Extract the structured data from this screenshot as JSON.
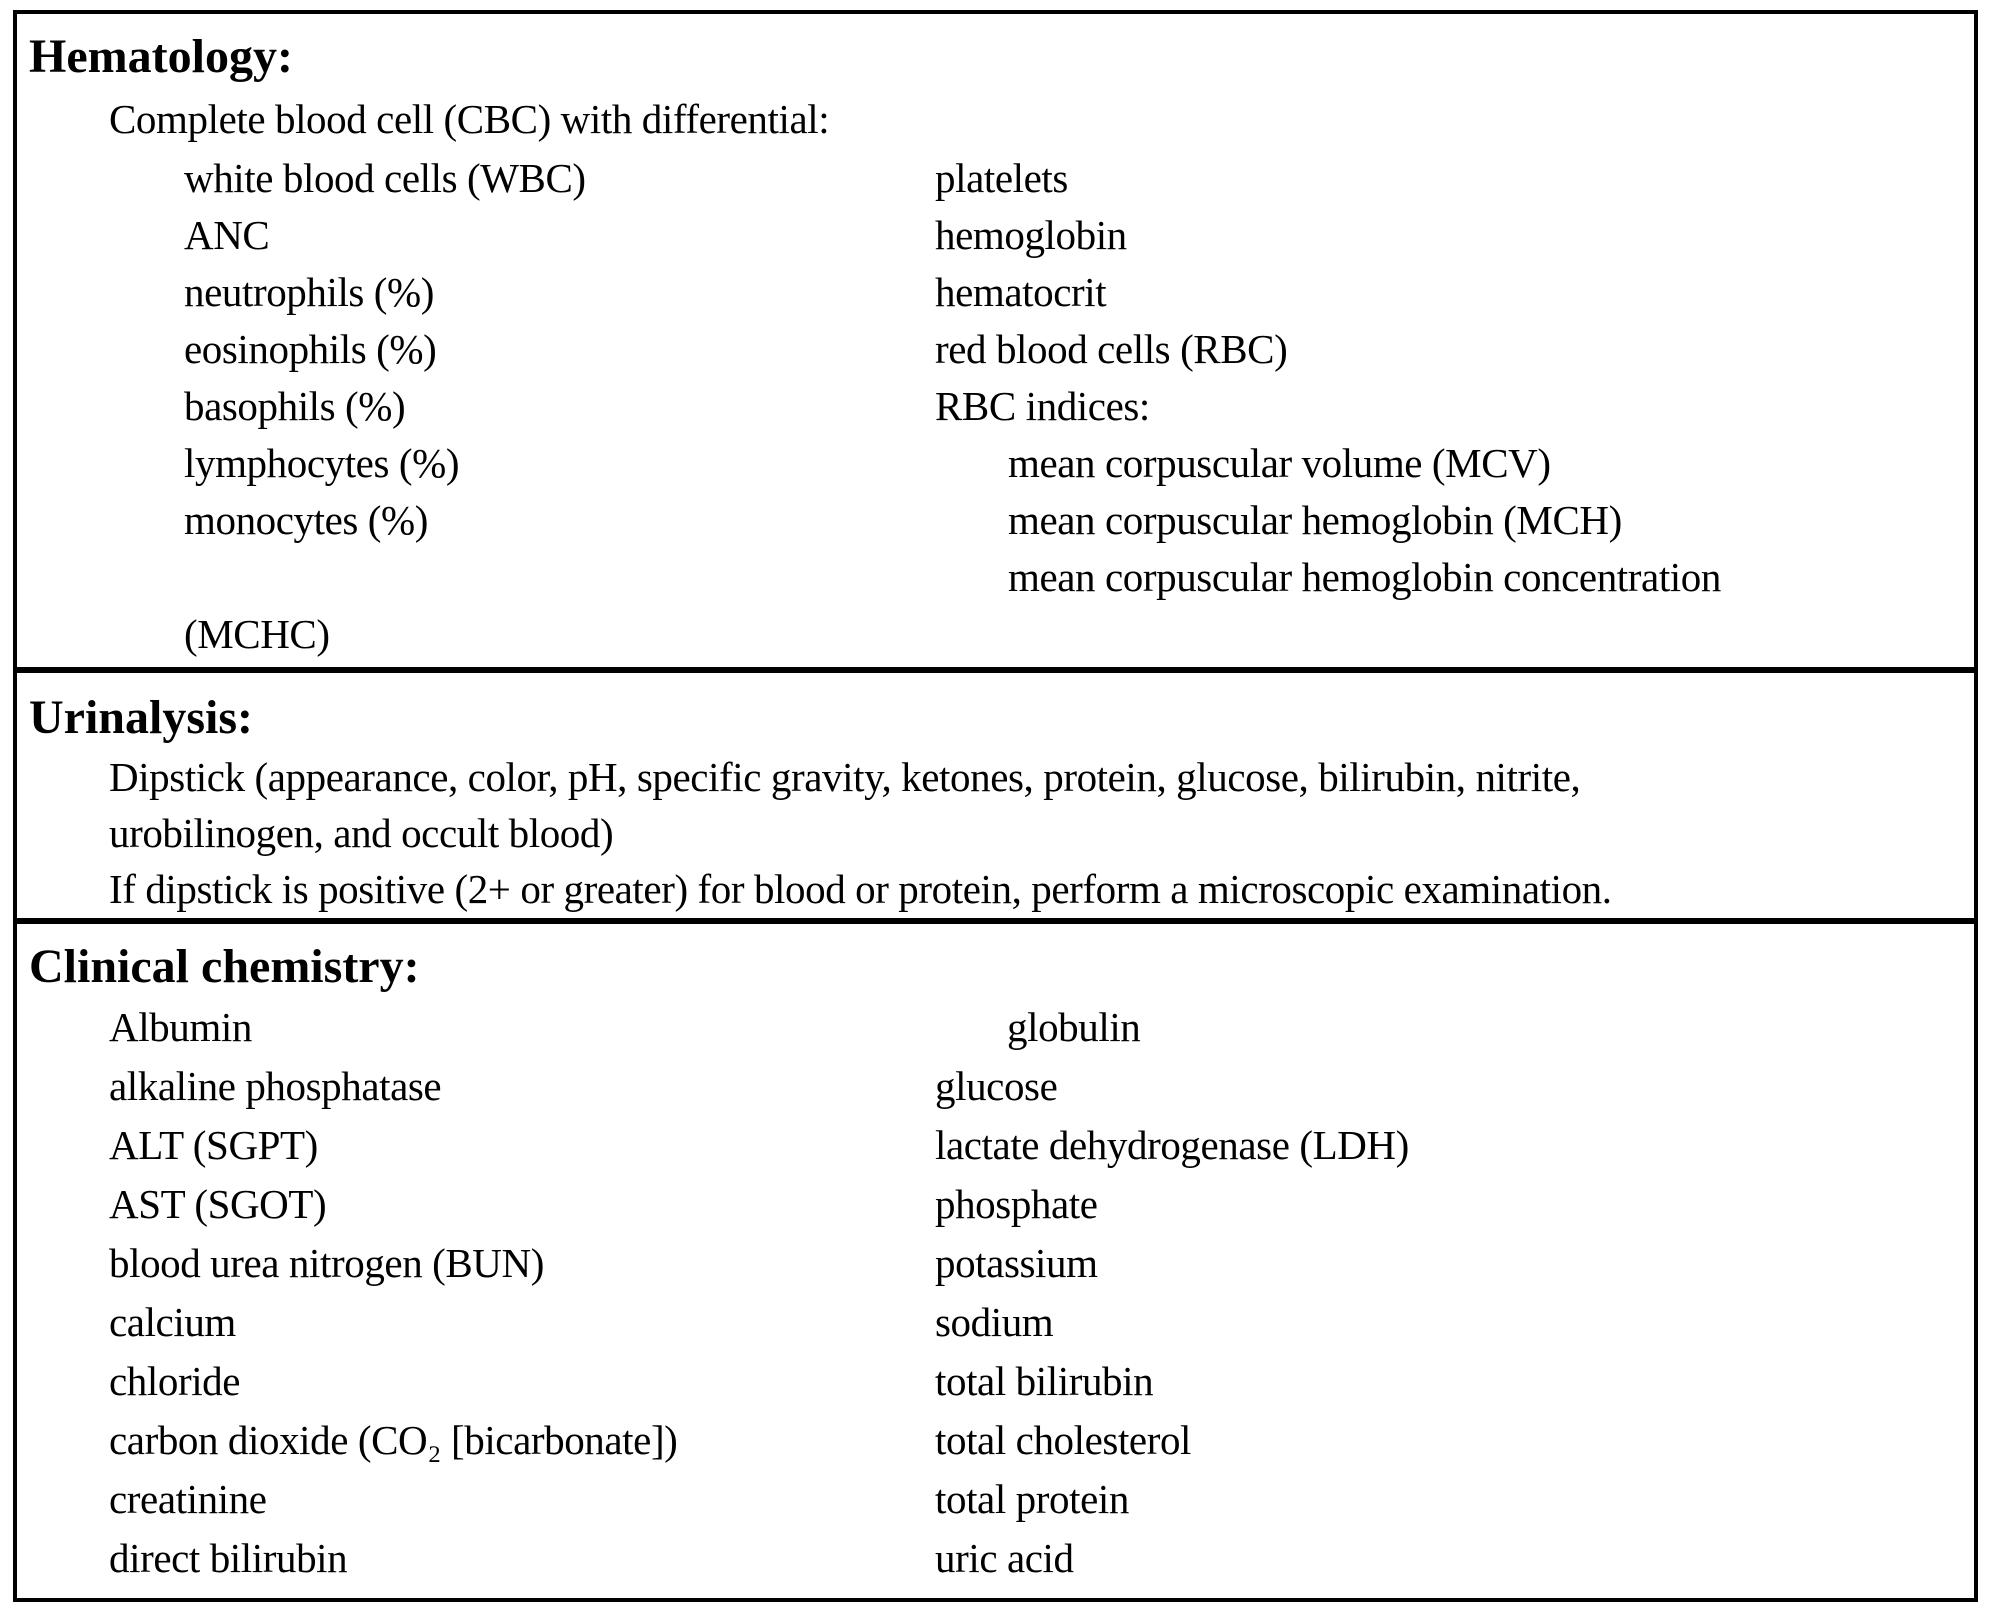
{
  "colors": {
    "ink": "#000000",
    "paper": "#ffffff"
  },
  "sections": {
    "hematology": {
      "title": "Hematology:",
      "subtitle": "Complete blood cell (CBC) with differential:",
      "rows": [
        {
          "left": "white blood cells (WBC)",
          "right": "platelets",
          "right_indented": false
        },
        {
          "left": "ANC",
          "right": "hemoglobin",
          "right_indented": false
        },
        {
          "left": "neutrophils (%)",
          "right": "hematocrit",
          "right_indented": false
        },
        {
          "left": "eosinophils (%)",
          "right": "red blood cells (RBC)",
          "right_indented": false
        },
        {
          "left": "basophils (%)",
          "right": "RBC indices:",
          "right_indented": false
        },
        {
          "left": "lymphocytes (%)",
          "right": "mean corpuscular volume (MCV)",
          "right_indented": true
        },
        {
          "left": "monocytes (%)",
          "right": "mean corpuscular hemoglobin (MCH)",
          "right_indented": true
        },
        {
          "left": "",
          "right": "mean corpuscular hemoglobin concentration",
          "right_indented": true
        },
        {
          "left": "(MCHC)",
          "right": "",
          "right_indented": false
        }
      ]
    },
    "urinalysis": {
      "title": "Urinalysis:",
      "dipstick_line_1": "Dipstick (appearance, color, pH, specific gravity, ketones, protein, glucose, bilirubin, nitrite,",
      "dipstick_line_2": "urobilinogen, and occult blood)",
      "microscopic_line": "If dipstick is positive (2+ or greater) for blood or protein, perform a microscopic examination."
    },
    "clinical_chemistry": {
      "title": "Clinical chemistry:",
      "rows": [
        {
          "left": "Albumin",
          "right": "globulin",
          "right_indented": true
        },
        {
          "left": "alkaline phosphatase",
          "right": "glucose",
          "right_indented": false
        },
        {
          "left": "ALT (SGPT)",
          "right": "lactate dehydrogenase (LDH)",
          "right_indented": false
        },
        {
          "left": "AST (SGOT)",
          "right": "phosphate",
          "right_indented": false
        },
        {
          "left": "blood urea nitrogen (BUN)",
          "right": "potassium",
          "right_indented": false
        },
        {
          "left": "calcium",
          "right": "sodium",
          "right_indented": false
        },
        {
          "left": "chloride",
          "right": "total bilirubin",
          "right_indented": false
        },
        {
          "left": "carbon dioxide (CO₂ [bicarbonate])",
          "right": "total cholesterol",
          "right_indented": false
        },
        {
          "left": "creatinine",
          "right": "total protein",
          "right_indented": false
        },
        {
          "left": "direct bilirubin",
          "right": "uric acid",
          "right_indented": false
        }
      ]
    }
  }
}
